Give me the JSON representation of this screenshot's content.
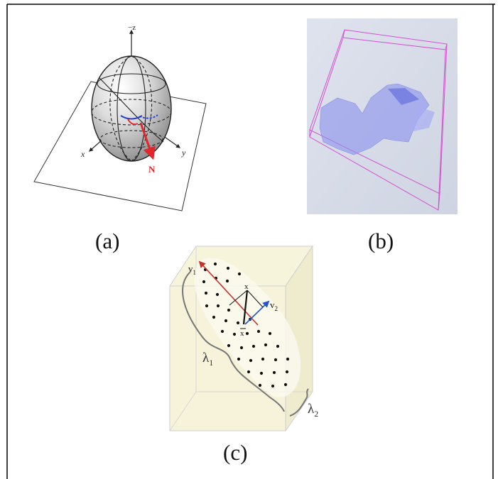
{
  "panels": {
    "a": {
      "caption": "(a)",
      "axis_z": "−z",
      "axis_x": "x",
      "axis_y": "y",
      "normal_label": "N"
    },
    "b": {
      "caption": "(b)"
    },
    "c": {
      "caption": "(c)",
      "v1_main": "v",
      "v1_sub": "1",
      "v2_main": "v",
      "v2_sub": "2",
      "x_label": "x",
      "xbar_label": "x",
      "lambda1_main": "λ",
      "lambda1_sub": "1",
      "lambda2_main": "λ",
      "lambda2_sub": "2"
    }
  },
  "colors": {
    "frame": "#000000",
    "sphere_fill": "#c9c9c9",
    "normal_arrow": "#e3262b",
    "blue_arc": "#1f3fcf",
    "panel_b_bg": "#d6dbe8",
    "panel_b_box": "#d34fd0",
    "panel_b_shape": "#8f96ec",
    "panel_c_box": "#f5f2d6",
    "panel_c_v1": "#c4332b",
    "panel_c_v2": "#2456c9"
  }
}
